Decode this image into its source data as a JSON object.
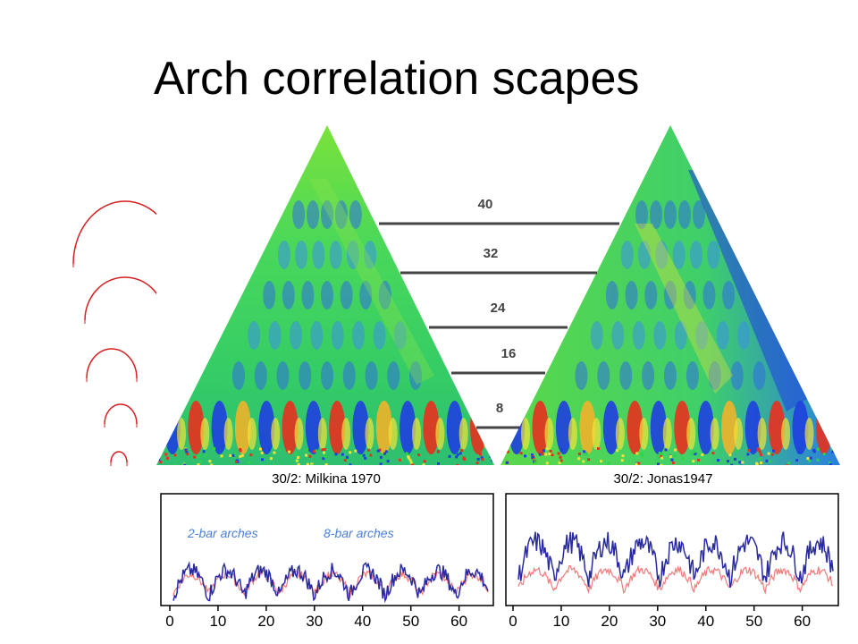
{
  "title": "Arch correlation scapes",
  "scape_levels": [
    "40",
    "32",
    "24",
    "16",
    "8"
  ],
  "chart_data": [
    {
      "type": "heatmap",
      "title": "30/2: Milkina 1970",
      "description_colors": {
        "high": "#e0201c",
        "mid": "#2fd34b",
        "low": "#1432c8"
      }
    },
    {
      "type": "heatmap",
      "title": "30/2: Jonas1947"
    },
    {
      "type": "line",
      "title": "",
      "xlabel": "",
      "ylabel": "",
      "xlim": [
        0,
        66
      ],
      "xticks": [
        "0",
        "10",
        "20",
        "30",
        "40",
        "50",
        "60"
      ],
      "series": [
        {
          "name": "2-bar arches",
          "color": "#2a2aa0"
        },
        {
          "name": "8-bar arches",
          "color": "#f07a7a"
        }
      ]
    },
    {
      "type": "line",
      "title": "",
      "xlim": [
        0,
        66
      ],
      "xticks": [
        "0",
        "10",
        "20",
        "30",
        "40",
        "50",
        "60"
      ],
      "series": [
        {
          "color": "#2a2aa0"
        },
        {
          "color": "#f07a7a"
        }
      ]
    }
  ]
}
